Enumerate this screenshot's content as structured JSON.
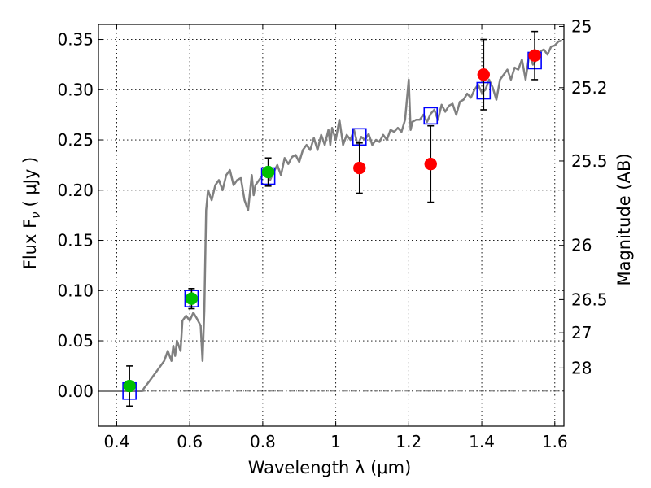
{
  "chart_data": {
    "type": "scatter",
    "title": "",
    "xlabel": "Wavelength  λ (μm)",
    "ylabel": "Flux  F",
    "ylabel_sub": "ν",
    "ylabel_unit": "(  μJy )",
    "ylabel_right": "Magnitude (AB)",
    "xlim": [
      0.35,
      1.625
    ],
    "ylim": [
      -0.035,
      0.365
    ],
    "grid": true,
    "x_ticks": [
      {
        "value": 0.4,
        "label": "0.4"
      },
      {
        "value": 0.6,
        "label": "0.6"
      },
      {
        "value": 0.8,
        "label": "0.8"
      },
      {
        "value": 1.0,
        "label": "1"
      },
      {
        "value": 1.2,
        "label": "1.2"
      },
      {
        "value": 1.4,
        "label": "1.4"
      },
      {
        "value": 1.6,
        "label": "1.6"
      }
    ],
    "y_ticks": [
      {
        "value": 0.0,
        "label": "0.00"
      },
      {
        "value": 0.05,
        "label": "0.05"
      },
      {
        "value": 0.1,
        "label": "0.10"
      },
      {
        "value": 0.15,
        "label": "0.15"
      },
      {
        "value": 0.2,
        "label": "0.20"
      },
      {
        "value": 0.25,
        "label": "0.25"
      },
      {
        "value": 0.3,
        "label": "0.30"
      },
      {
        "value": 0.35,
        "label": "0.35"
      }
    ],
    "y_right_ticks": [
      {
        "flux": 0.363,
        "label": "25"
      },
      {
        "flux": 0.302,
        "label": "25.2"
      },
      {
        "flux": 0.229,
        "label": "25.5"
      },
      {
        "flux": 0.145,
        "label": "26"
      },
      {
        "flux": 0.091,
        "label": "26.5"
      },
      {
        "flux": 0.058,
        "label": "27"
      },
      {
        "flux": 0.023,
        "label": "28"
      }
    ],
    "colors": {
      "sed": "#808080",
      "detection": "#00c000",
      "upper": "#ff0000",
      "model_box": "#0000ff",
      "errorbar": "#000000",
      "zero_line": "#555555"
    },
    "series": [
      {
        "name": "model SED",
        "kind": "line",
        "x": [
          0.35,
          0.47,
          0.475,
          0.49,
          0.51,
          0.53,
          0.54,
          0.55,
          0.555,
          0.56,
          0.565,
          0.575,
          0.58,
          0.59,
          0.6,
          0.61,
          0.62,
          0.63,
          0.635,
          0.64,
          0.645,
          0.65,
          0.66,
          0.67,
          0.68,
          0.69,
          0.7,
          0.71,
          0.72,
          0.73,
          0.74,
          0.75,
          0.76,
          0.77,
          0.775,
          0.78,
          0.79,
          0.8,
          0.81,
          0.82,
          0.83,
          0.84,
          0.85,
          0.86,
          0.87,
          0.88,
          0.89,
          0.9,
          0.91,
          0.92,
          0.93,
          0.94,
          0.95,
          0.96,
          0.97,
          0.98,
          0.985,
          0.99,
          1.0,
          1.01,
          1.02,
          1.03,
          1.04,
          1.05,
          1.06,
          1.07,
          1.08,
          1.09,
          1.1,
          1.11,
          1.12,
          1.13,
          1.14,
          1.15,
          1.16,
          1.17,
          1.18,
          1.19,
          1.2,
          1.205,
          1.21,
          1.22,
          1.23,
          1.24,
          1.25,
          1.26,
          1.27,
          1.28,
          1.29,
          1.3,
          1.31,
          1.32,
          1.33,
          1.34,
          1.35,
          1.36,
          1.37,
          1.38,
          1.39,
          1.4,
          1.41,
          1.42,
          1.43,
          1.44,
          1.45,
          1.46,
          1.47,
          1.48,
          1.49,
          1.5,
          1.51,
          1.52,
          1.53,
          1.54,
          1.55,
          1.56,
          1.57,
          1.58,
          1.59,
          1.6,
          1.61,
          1.62
        ],
        "y": [
          0.0,
          0.0,
          0.003,
          0.01,
          0.02,
          0.03,
          0.04,
          0.03,
          0.045,
          0.035,
          0.05,
          0.04,
          0.07,
          0.075,
          0.07,
          0.078,
          0.072,
          0.065,
          0.03,
          0.08,
          0.18,
          0.2,
          0.19,
          0.205,
          0.21,
          0.2,
          0.215,
          0.22,
          0.205,
          0.21,
          0.212,
          0.19,
          0.18,
          0.215,
          0.195,
          0.205,
          0.21,
          0.215,
          0.222,
          0.21,
          0.218,
          0.225,
          0.215,
          0.232,
          0.226,
          0.233,
          0.235,
          0.228,
          0.24,
          0.245,
          0.24,
          0.252,
          0.24,
          0.255,
          0.245,
          0.26,
          0.245,
          0.262,
          0.25,
          0.27,
          0.245,
          0.255,
          0.25,
          0.26,
          0.245,
          0.253,
          0.25,
          0.256,
          0.245,
          0.25,
          0.248,
          0.255,
          0.25,
          0.26,
          0.258,
          0.262,
          0.258,
          0.27,
          0.31,
          0.26,
          0.268,
          0.27,
          0.27,
          0.275,
          0.268,
          0.276,
          0.28,
          0.27,
          0.285,
          0.278,
          0.284,
          0.286,
          0.275,
          0.288,
          0.29,
          0.296,
          0.292,
          0.3,
          0.305,
          0.297,
          0.3,
          0.31,
          0.302,
          0.29,
          0.31,
          0.315,
          0.32,
          0.31,
          0.322,
          0.32,
          0.33,
          0.31,
          0.335,
          0.325,
          0.33,
          0.338,
          0.34,
          0.335,
          0.343,
          0.344,
          0.348,
          0.349
        ]
      },
      {
        "name": "detections",
        "kind": "point",
        "x": [
          0.435,
          0.605,
          0.815
        ],
        "y": [
          0.005,
          0.092,
          0.218
        ],
        "err": [
          0.02,
          0.01,
          0.014
        ]
      },
      {
        "name": "upper limits",
        "kind": "point",
        "x": [
          1.065,
          1.26,
          1.405,
          1.545
        ],
        "y": [
          0.222,
          0.226,
          0.315,
          0.334
        ],
        "err": [
          0.025,
          0.038,
          0.035,
          0.024
        ]
      },
      {
        "name": "model photometry",
        "kind": "box",
        "x": [
          0.435,
          0.605,
          0.815,
          1.065,
          1.26,
          1.405,
          1.545
        ],
        "y": [
          0.0,
          0.092,
          0.214,
          0.253,
          0.274,
          0.299,
          0.329
        ]
      }
    ]
  }
}
